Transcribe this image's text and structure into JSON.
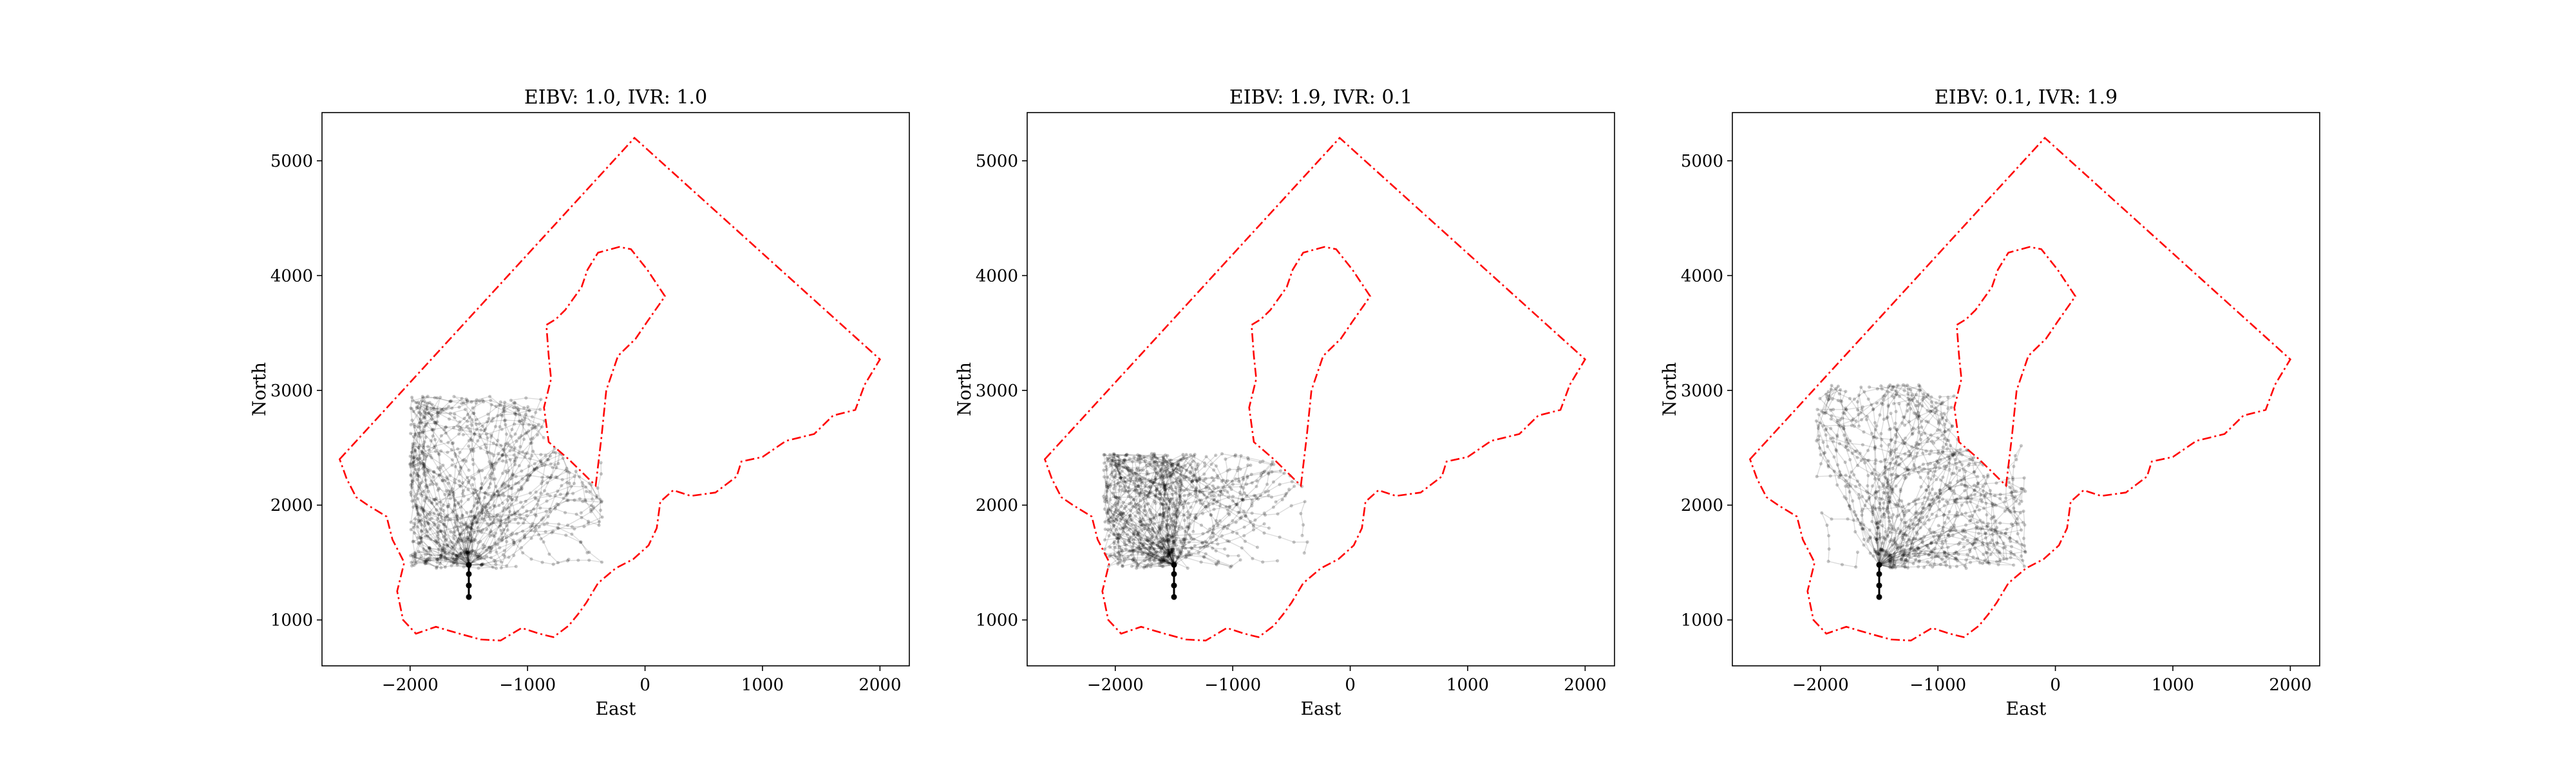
{
  "chart_data": [
    {
      "type": "scatter",
      "title": "EIBV: 1.0, IVR: 1.0",
      "xlabel": "East",
      "ylabel": "North",
      "xlim": [
        -2750,
        2250
      ],
      "ylim": [
        600,
        5420
      ],
      "xticks": [
        -2000,
        -1000,
        0,
        1000,
        2000
      ],
      "xtick_labels": [
        "−2000",
        "−1000",
        "0",
        "1000",
        "2000"
      ],
      "yticks": [
        1000,
        2000,
        3000,
        4000,
        5000
      ],
      "ytick_labels": [
        "1000",
        "2000",
        "3000",
        "4000",
        "5000"
      ],
      "grid": false,
      "boundary_color": "#ff0000",
      "path_color": "#000000",
      "start_point": {
        "x": -1500,
        "y": 1200
      },
      "branch_point": {
        "x": -1500,
        "y": 1480
      },
      "trajectory_bias": "centered",
      "trajectory_extent": {
        "x": [
          -2000,
          -350
        ],
        "y": [
          1450,
          2950
        ]
      }
    },
    {
      "type": "scatter",
      "title": "EIBV: 1.9, IVR: 0.1",
      "xlabel": "East",
      "ylabel": "North",
      "xlim": [
        -2750,
        2250
      ],
      "ylim": [
        600,
        5420
      ],
      "xticks": [
        -2000,
        -1000,
        0,
        1000,
        2000
      ],
      "xtick_labels": [
        "−2000",
        "−1000",
        "0",
        "1000",
        "2000"
      ],
      "yticks": [
        1000,
        2000,
        3000,
        4000,
        5000
      ],
      "ytick_labels": [
        "1000",
        "2000",
        "3000",
        "4000",
        "5000"
      ],
      "grid": false,
      "boundary_color": "#ff0000",
      "path_color": "#000000",
      "start_point": {
        "x": -1500,
        "y": 1200
      },
      "branch_point": {
        "x": -1500,
        "y": 1480
      },
      "trajectory_bias": "west",
      "trajectory_extent": {
        "x": [
          -2100,
          -350
        ],
        "y": [
          1450,
          2450
        ]
      }
    },
    {
      "type": "scatter",
      "title": "EIBV: 0.1, IVR: 1.9",
      "xlabel": "East",
      "ylabel": "North",
      "xlim": [
        -2750,
        2250
      ],
      "ylim": [
        600,
        5420
      ],
      "xticks": [
        -2000,
        -1000,
        0,
        1000,
        2000
      ],
      "xtick_labels": [
        "−2000",
        "−1000",
        "0",
        "1000",
        "2000"
      ],
      "yticks": [
        1000,
        2000,
        3000,
        4000,
        5000
      ],
      "ytick_labels": [
        "1000",
        "2000",
        "3000",
        "4000",
        "5000"
      ],
      "grid": false,
      "boundary_color": "#ff0000",
      "path_color": "#000000",
      "start_point": {
        "x": -1500,
        "y": 1200
      },
      "branch_point": {
        "x": -1500,
        "y": 1480
      },
      "trajectory_bias": "east",
      "trajectory_extent": {
        "x": [
          -2050,
          -250
        ],
        "y": [
          1450,
          3050
        ]
      }
    }
  ],
  "boundary": {
    "outer": [
      {
        "x": -2600,
        "y": 2400
      },
      {
        "x": -90,
        "y": 5200
      },
      {
        "x": 2000,
        "y": 3270
      },
      {
        "x": 1870,
        "y": 3050
      },
      {
        "x": 1790,
        "y": 2830
      },
      {
        "x": 1600,
        "y": 2780
      },
      {
        "x": 1440,
        "y": 2620
      },
      {
        "x": 1200,
        "y": 2560
      },
      {
        "x": 1000,
        "y": 2420
      },
      {
        "x": 820,
        "y": 2380
      },
      {
        "x": 780,
        "y": 2250
      },
      {
        "x": 600,
        "y": 2110
      },
      {
        "x": 390,
        "y": 2080
      },
      {
        "x": 240,
        "y": 2130
      },
      {
        "x": 130,
        "y": 2030
      },
      {
        "x": 100,
        "y": 1800
      },
      {
        "x": 30,
        "y": 1650
      },
      {
        "x": -100,
        "y": 1530
      },
      {
        "x": -250,
        "y": 1450
      },
      {
        "x": -400,
        "y": 1320
      },
      {
        "x": -500,
        "y": 1150
      },
      {
        "x": -570,
        "y": 1050
      },
      {
        "x": -650,
        "y": 950
      },
      {
        "x": -780,
        "y": 850
      },
      {
        "x": -900,
        "y": 880
      },
      {
        "x": -1050,
        "y": 930
      },
      {
        "x": -1230,
        "y": 820
      },
      {
        "x": -1400,
        "y": 830
      },
      {
        "x": -1580,
        "y": 880
      },
      {
        "x": -1780,
        "y": 940
      },
      {
        "x": -1950,
        "y": 880
      },
      {
        "x": -2060,
        "y": 1000
      },
      {
        "x": -2110,
        "y": 1250
      },
      {
        "x": -2050,
        "y": 1500
      },
      {
        "x": -2150,
        "y": 1700
      },
      {
        "x": -2200,
        "y": 1900
      },
      {
        "x": -2360,
        "y": 2000
      },
      {
        "x": -2460,
        "y": 2070
      },
      {
        "x": -2540,
        "y": 2230
      },
      {
        "x": -2600,
        "y": 2400
      }
    ],
    "island": [
      {
        "x": -420,
        "y": 2170
      },
      {
        "x": -370,
        "y": 2600
      },
      {
        "x": -330,
        "y": 3000
      },
      {
        "x": -230,
        "y": 3300
      },
      {
        "x": -80,
        "y": 3450
      },
      {
        "x": 20,
        "y": 3600
      },
      {
        "x": 170,
        "y": 3820
      },
      {
        "x": 20,
        "y": 4050
      },
      {
        "x": -120,
        "y": 4230
      },
      {
        "x": -220,
        "y": 4250
      },
      {
        "x": -400,
        "y": 4200
      },
      {
        "x": -490,
        "y": 4050
      },
      {
        "x": -540,
        "y": 3900
      },
      {
        "x": -680,
        "y": 3700
      },
      {
        "x": -760,
        "y": 3620
      },
      {
        "x": -840,
        "y": 3570
      },
      {
        "x": -820,
        "y": 3300
      },
      {
        "x": -800,
        "y": 3100
      },
      {
        "x": -860,
        "y": 2850
      },
      {
        "x": -820,
        "y": 2550
      },
      {
        "x": -650,
        "y": 2400
      },
      {
        "x": -420,
        "y": 2170
      }
    ]
  }
}
